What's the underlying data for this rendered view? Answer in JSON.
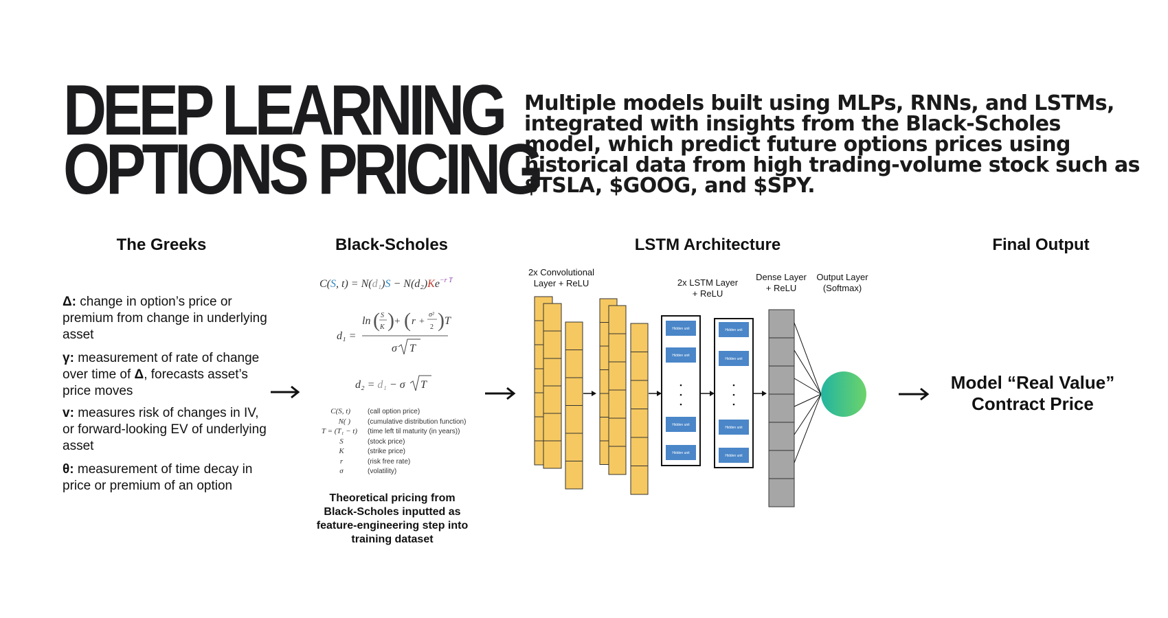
{
  "title": {
    "line1": "DEEP LEARNING",
    "line2": "OPTIONS PRICING"
  },
  "description": "Multiple models built using MLPs, RNNs, and LSTMs, integrated with insights from the Black-Scholes model, which predict future options prices using historical data from high trading-volume stock such as $TSLA, $GOOG, and $SPY.",
  "sections": {
    "greeks": "The Greeks",
    "black_scholes": "Black-Scholes",
    "lstm": "LSTM Architecture",
    "final": "Final Output"
  },
  "greeks": [
    {
      "symbol": "Δ:",
      "text": "change in option’s price or premium from change in underlying asset"
    },
    {
      "symbol": "γ:",
      "text_before": "measurement of rate of change over time of",
      "inline_symbol": "Δ",
      "text_after": ", forecasts asset’s price moves"
    },
    {
      "symbol": "v:",
      "text": "measures risk of changes in IV, or forward-looking EV of underlying asset"
    },
    {
      "symbol": "θ:",
      "text": "measurement of time decay in price or premium of an option"
    }
  ],
  "black_scholes": {
    "legend": [
      {
        "symbol": "C(S, t)",
        "desc": "(call option price)",
        "color": "#333333"
      },
      {
        "symbol": "N( )",
        "desc": "(cumulative distribution function)",
        "color": "#333333"
      },
      {
        "symbol": "T = (T₁ − t)",
        "desc": "(time left til maturity (in years))",
        "color": "#8e44ad"
      },
      {
        "symbol": "S",
        "desc": "(stock price)",
        "color": "#2e86c1"
      },
      {
        "symbol": "K",
        "desc": "(strike price)",
        "color": "#c0392b"
      },
      {
        "symbol": "r",
        "desc": "(risk free rate)",
        "color": "#9acd32"
      },
      {
        "symbol": "σ",
        "desc": "(volatility)",
        "color": "#333333"
      }
    ],
    "caption": "Theoretical pricing from Black-Scholes inputted as feature-engineering step into training dataset"
  },
  "lstm": {
    "layers": {
      "conv": "2x Convolutional Layer + ReLU",
      "lstm": "2x LSTM Layer + ReLU",
      "dense": "Dense Layer + ReLU",
      "output": "Output Layer (Softmax)"
    },
    "hidden_unit": "Hidden unit",
    "colors": {
      "conv": "#f5c861",
      "hidden": "#4a86c8",
      "dense": "#a6a6a6",
      "output_start": "#22b5a0",
      "output_end": "#6dd36a"
    }
  },
  "final_output": "Model “Real Value” Contract Price",
  "arrow_glyph": "⟶"
}
